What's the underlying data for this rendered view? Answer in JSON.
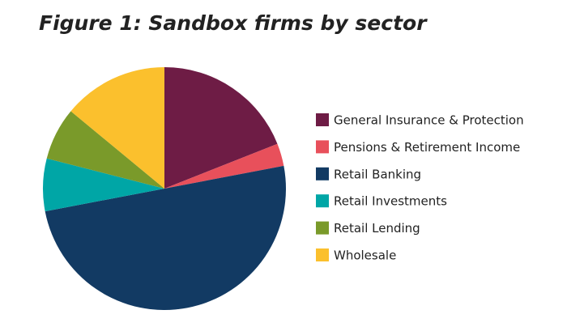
{
  "chart_data": {
    "type": "pie",
    "title": "Figure 1: Sandbox firms by sector",
    "categories": [
      "General Insurance & Protection",
      "Pensions & Retirement Income",
      "Retail Banking",
      "Retail Investments",
      "Retail Lending",
      "Wholesale"
    ],
    "values": [
      19,
      3,
      50,
      7,
      7,
      14
    ],
    "colors": [
      "#6e1c45",
      "#e8505b",
      "#123a63",
      "#00a6a6",
      "#7a9a2a",
      "#fbc02d"
    ],
    "legend": "right"
  }
}
